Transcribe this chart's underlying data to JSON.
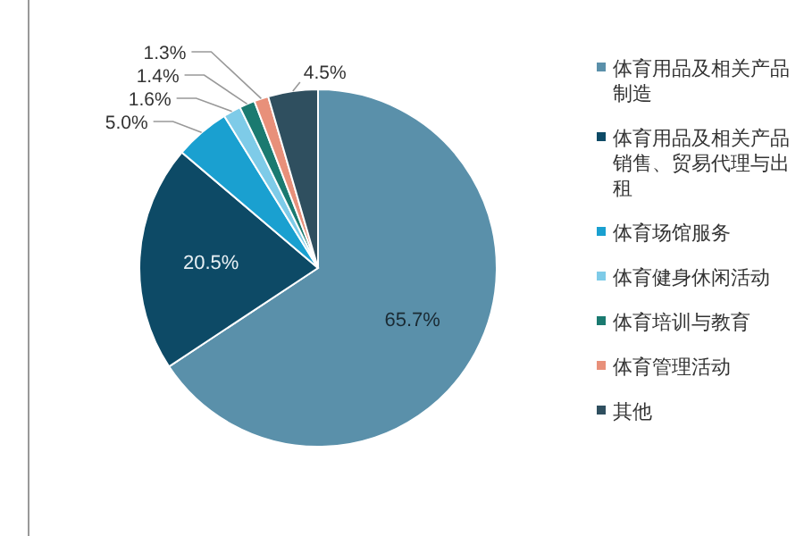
{
  "chart_data": {
    "type": "pie",
    "categories": [
      "体育用品及相关产品制造",
      "体育用品及相关产品销售、贸易代理与出租",
      "体育场馆服务",
      "体育健身休闲活动",
      "体育培训与教育",
      "体育管理活动",
      "其他"
    ],
    "values": [
      65.7,
      20.5,
      5.0,
      1.6,
      1.4,
      1.3,
      4.5
    ],
    "value_labels": [
      "65.7%",
      "20.5%",
      "5.0%",
      "1.6%",
      "1.4%",
      "1.3%",
      "4.5%"
    ],
    "colors": [
      "#5a90aa",
      "#0d4a66",
      "#1aa0d0",
      "#7ecbe8",
      "#1a7a70",
      "#e8907a",
      "#2f4f5f"
    ],
    "legend": "right"
  }
}
